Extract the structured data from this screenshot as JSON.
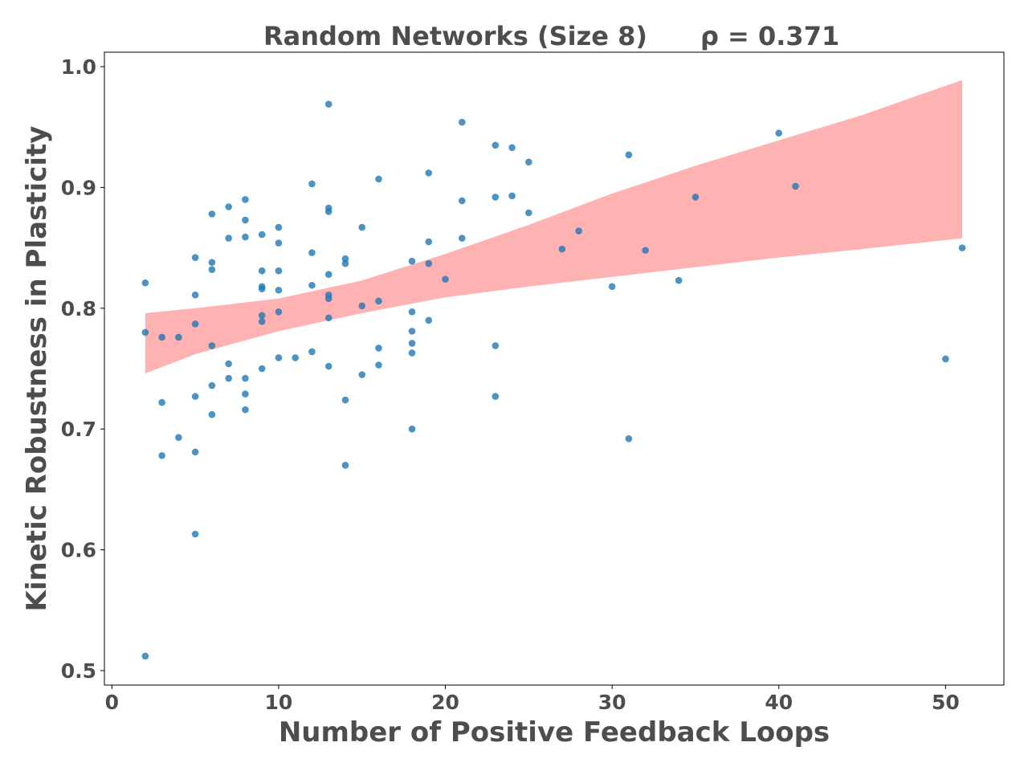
{
  "chart_data": {
    "type": "scatter",
    "title": "Random Networks (Size 8)",
    "annotation": "ρ = 0.371",
    "xlabel": "Number of Positive Feedback Loops",
    "ylabel": "Kinetic Robustness in Plasticity",
    "xlim": [
      -0.45,
      53.5
    ],
    "ylim": [
      0.488,
      1.012
    ],
    "xticks": [
      0,
      10,
      20,
      30,
      40,
      50
    ],
    "yticks": [
      0.5,
      0.6,
      0.7,
      0.8,
      0.9,
      1.0
    ],
    "xtick_labels": [
      "0",
      "10",
      "20",
      "30",
      "40",
      "50"
    ],
    "ytick_labels": [
      "0.5",
      "0.6",
      "0.7",
      "0.8",
      "0.9",
      "1.0"
    ],
    "grid": false,
    "colors": {
      "points": "#1f77b4",
      "band": "#ff6666",
      "text": "#4d4d4d"
    },
    "confidence_band": {
      "x": [
        2,
        5,
        10,
        15,
        20,
        25,
        30,
        35,
        40,
        45,
        51
      ],
      "lower": [
        0.746,
        0.762,
        0.781,
        0.796,
        0.809,
        0.818,
        0.826,
        0.834,
        0.842,
        0.849,
        0.858
      ],
      "upper": [
        0.796,
        0.8,
        0.808,
        0.823,
        0.845,
        0.869,
        0.895,
        0.918,
        0.939,
        0.96,
        0.989
      ]
    },
    "series": [
      {
        "points": [
          [
            2,
            0.821
          ],
          [
            2,
            0.78
          ],
          [
            2,
            0.512
          ],
          [
            3,
            0.776
          ],
          [
            3,
            0.722
          ],
          [
            3,
            0.678
          ],
          [
            4,
            0.776
          ],
          [
            4,
            0.693
          ],
          [
            5,
            0.842
          ],
          [
            5,
            0.811
          ],
          [
            5,
            0.787
          ],
          [
            5,
            0.727
          ],
          [
            5,
            0.681
          ],
          [
            5,
            0.613
          ],
          [
            6,
            0.878
          ],
          [
            6,
            0.838
          ],
          [
            6,
            0.832
          ],
          [
            6,
            0.769
          ],
          [
            6,
            0.736
          ],
          [
            6,
            0.712
          ],
          [
            7,
            0.884
          ],
          [
            7,
            0.858
          ],
          [
            7,
            0.754
          ],
          [
            7,
            0.742
          ],
          [
            8,
            0.89
          ],
          [
            8,
            0.873
          ],
          [
            8,
            0.859
          ],
          [
            8,
            0.742
          ],
          [
            8,
            0.729
          ],
          [
            8,
            0.716
          ],
          [
            9,
            0.861
          ],
          [
            9,
            0.831
          ],
          [
            9,
            0.818
          ],
          [
            9,
            0.816
          ],
          [
            9,
            0.794
          ],
          [
            9,
            0.789
          ],
          [
            9,
            0.75
          ],
          [
            10,
            0.867
          ],
          [
            10,
            0.854
          ],
          [
            10,
            0.831
          ],
          [
            10,
            0.815
          ],
          [
            10,
            0.797
          ],
          [
            10,
            0.759
          ],
          [
            11,
            0.759
          ],
          [
            12,
            0.903
          ],
          [
            12,
            0.846
          ],
          [
            12,
            0.819
          ],
          [
            12,
            0.764
          ],
          [
            13,
            0.969
          ],
          [
            13,
            0.883
          ],
          [
            13,
            0.88
          ],
          [
            13,
            0.828
          ],
          [
            13,
            0.811
          ],
          [
            13,
            0.808
          ],
          [
            13,
            0.792
          ],
          [
            13,
            0.752
          ],
          [
            14,
            0.841
          ],
          [
            14,
            0.837
          ],
          [
            14,
            0.724
          ],
          [
            14,
            0.67
          ],
          [
            15,
            0.867
          ],
          [
            15,
            0.802
          ],
          [
            15,
            0.745
          ],
          [
            16,
            0.907
          ],
          [
            16,
            0.806
          ],
          [
            16,
            0.767
          ],
          [
            16,
            0.753
          ],
          [
            18,
            0.839
          ],
          [
            18,
            0.797
          ],
          [
            18,
            0.781
          ],
          [
            18,
            0.771
          ],
          [
            18,
            0.763
          ],
          [
            18,
            0.7
          ],
          [
            19,
            0.912
          ],
          [
            19,
            0.855
          ],
          [
            19,
            0.837
          ],
          [
            19,
            0.79
          ],
          [
            20,
            0.824
          ],
          [
            21,
            0.954
          ],
          [
            21,
            0.889
          ],
          [
            21,
            0.858
          ],
          [
            23,
            0.935
          ],
          [
            23,
            0.892
          ],
          [
            23,
            0.769
          ],
          [
            23,
            0.727
          ],
          [
            24,
            0.933
          ],
          [
            24,
            0.893
          ],
          [
            25,
            0.921
          ],
          [
            25,
            0.879
          ],
          [
            27,
            0.849
          ],
          [
            28,
            0.864
          ],
          [
            30,
            0.818
          ],
          [
            31,
            0.927
          ],
          [
            31,
            0.692
          ],
          [
            32,
            0.848
          ],
          [
            34,
            0.823
          ],
          [
            35,
            0.892
          ],
          [
            40,
            0.945
          ],
          [
            41,
            0.901
          ],
          [
            50,
            0.758
          ],
          [
            51,
            0.85
          ]
        ]
      }
    ]
  }
}
